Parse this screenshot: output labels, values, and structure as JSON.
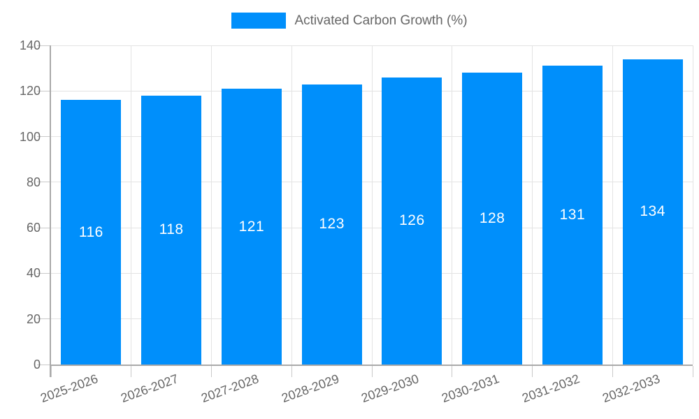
{
  "chart_data": {
    "type": "bar",
    "title": "",
    "legend": "Activated Carbon Growth (%)",
    "legend_position": "top",
    "categories": [
      "2025-2026",
      "2026-2027",
      "2027-2028",
      "2028-2029",
      "2029-2030",
      "2030-2031",
      "2031-2032",
      "2032-2033"
    ],
    "series": [
      {
        "name": "Activated Carbon Growth (%)",
        "values": [
          116,
          118,
          121,
          123,
          126,
          128,
          131,
          134
        ]
      }
    ],
    "xlabel": "",
    "ylabel": "",
    "ylim": [
      0,
      140
    ],
    "yticks": [
      0,
      20,
      40,
      60,
      80,
      100,
      120,
      140
    ],
    "grid": true,
    "value_labels_position": "inside-center",
    "colors": {
      "bar": "#008FFB",
      "value_label": "#ffffff",
      "grid_line": "#e3e3e3",
      "axis_line": "#a9a9a9",
      "tick_line": "#c9c9c9",
      "axis_text": "#666666",
      "background": "#ffffff"
    }
  }
}
